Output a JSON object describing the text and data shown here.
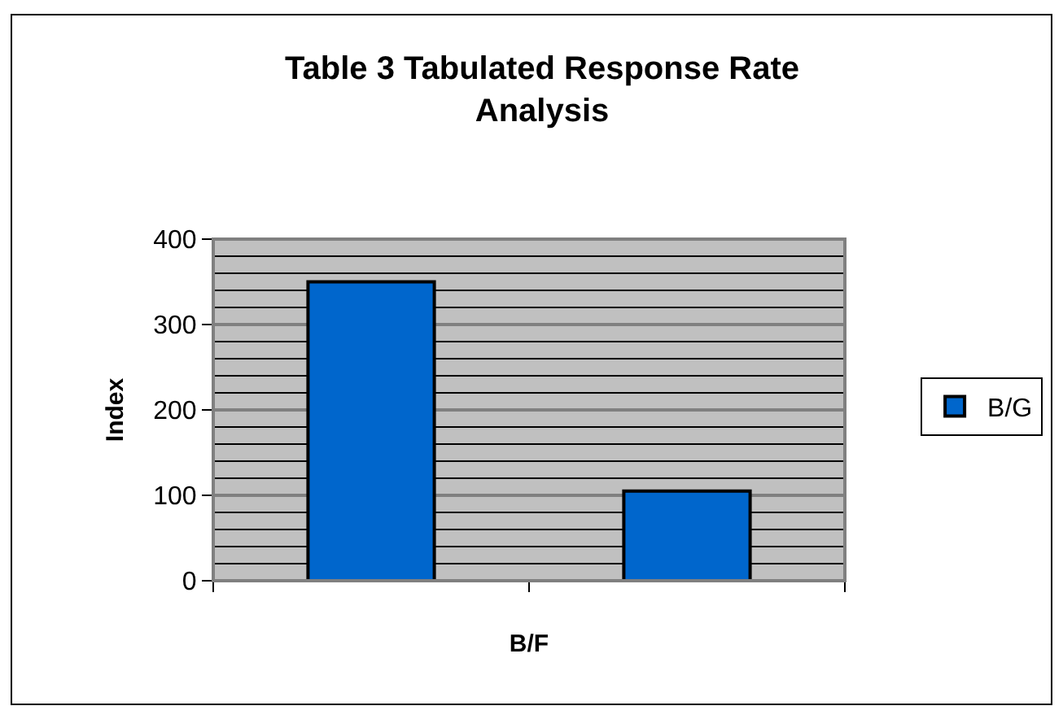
{
  "chart_data": {
    "type": "bar",
    "title": "Table 3 Tabulated Response Rate Analysis",
    "xlabel": "B/F",
    "ylabel": "Index",
    "categories": [
      null,
      null
    ],
    "series": [
      {
        "name": "B/G",
        "color": "#0066cc",
        "values": [
          350,
          105
        ]
      }
    ],
    "ylim": [
      0,
      400
    ],
    "yticks": [
      0,
      100,
      200,
      300,
      400
    ],
    "grid": "y",
    "legend": "right"
  }
}
